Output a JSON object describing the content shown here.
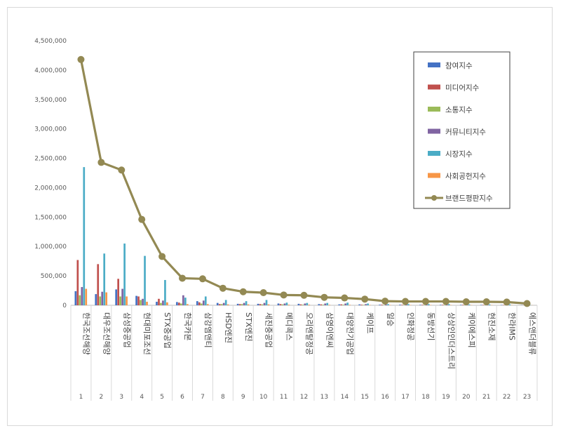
{
  "chart_data": {
    "type": "bar",
    "categories": [
      "한국조선해양",
      "대우조선해양",
      "삼성중공업",
      "현대미포조선",
      "STX중공업",
      "한국카본",
      "삼강엠앤티",
      "HSD엔진",
      "STX엔진",
      "세진중공업",
      "메디콕스",
      "오리엔탈정공",
      "삼영이엔씨",
      "대양전기공업",
      "케이프",
      "일승",
      "인화정공",
      "동방선기",
      "상상인인더스트리",
      "케이에스피",
      "현진소재",
      "한라IMS",
      "에스앤더블류"
    ],
    "x": [
      "1",
      "2",
      "3",
      "4",
      "5",
      "6",
      "7",
      "8",
      "9",
      "10",
      "11",
      "12",
      "13",
      "14",
      "15",
      "16",
      "17",
      "18",
      "19",
      "20",
      "21",
      "22",
      "23"
    ],
    "series": [
      {
        "name": "참여지수",
        "kind": "bar",
        "color": "#4472c4",
        "values": [
          240000,
          190000,
          270000,
          160000,
          60000,
          55000,
          70000,
          40000,
          25000,
          25000,
          30000,
          25000,
          20000,
          15000,
          15000,
          10000,
          10000,
          8000,
          8000,
          8000,
          7000,
          6000,
          3000
        ]
      },
      {
        "name": "미디어지수",
        "kind": "bar",
        "color": "#c0504d",
        "values": [
          770000,
          700000,
          450000,
          150000,
          110000,
          45000,
          50000,
          20000,
          20000,
          20000,
          20000,
          15000,
          15000,
          15000,
          10000,
          10000,
          8000,
          8000,
          8000,
          8000,
          7000,
          6000,
          3000
        ]
      },
      {
        "name": "소통지수",
        "kind": "bar",
        "color": "#9bbb59",
        "values": [
          170000,
          150000,
          150000,
          90000,
          40000,
          30000,
          30000,
          20000,
          20000,
          15000,
          15000,
          10000,
          10000,
          10000,
          8000,
          6000,
          6000,
          6000,
          6000,
          6000,
          5000,
          5000,
          2000
        ]
      },
      {
        "name": "커뮤니티지수",
        "kind": "bar",
        "color": "#8064a2",
        "values": [
          310000,
          230000,
          280000,
          110000,
          80000,
          170000,
          80000,
          40000,
          40000,
          40000,
          30000,
          30000,
          30000,
          30000,
          20000,
          15000,
          12000,
          12000,
          12000,
          12000,
          10000,
          10000,
          4000
        ]
      },
      {
        "name": "시장지수",
        "kind": "bar",
        "color": "#4bacc6",
        "values": [
          2350000,
          880000,
          1050000,
          840000,
          430000,
          130000,
          150000,
          90000,
          70000,
          90000,
          45000,
          40000,
          40000,
          45000,
          30000,
          20000,
          20000,
          20000,
          20000,
          15000,
          15000,
          15000,
          5000
        ]
      },
      {
        "name": "사회공헌지수",
        "kind": "bar",
        "color": "#f79646",
        "values": [
          280000,
          220000,
          150000,
          60000,
          50000,
          20000,
          20000,
          15000,
          15000,
          15000,
          10000,
          10000,
          8000,
          8000,
          5000,
          5000,
          5000,
          5000,
          5000,
          5000,
          5000,
          5000,
          2000
        ]
      },
      {
        "name": "브랜드평판지수",
        "kind": "line",
        "color": "#938953",
        "values": [
          4180000,
          2430000,
          2300000,
          1460000,
          830000,
          460000,
          450000,
          290000,
          230000,
          215000,
          175000,
          170000,
          135000,
          125000,
          105000,
          70000,
          65000,
          65000,
          65000,
          60000,
          60000,
          55000,
          30000
        ]
      }
    ],
    "yticks": [
      "0",
      "500,000",
      "1,000,000",
      "1,500,000",
      "2,000,000",
      "2,500,000",
      "3,000,000",
      "3,500,000",
      "4,000,000",
      "4,500,000"
    ],
    "ylim": [
      0,
      4500000
    ],
    "grid": false,
    "legend": "top-right",
    "title": "",
    "xlabel": "",
    "ylabel": ""
  }
}
